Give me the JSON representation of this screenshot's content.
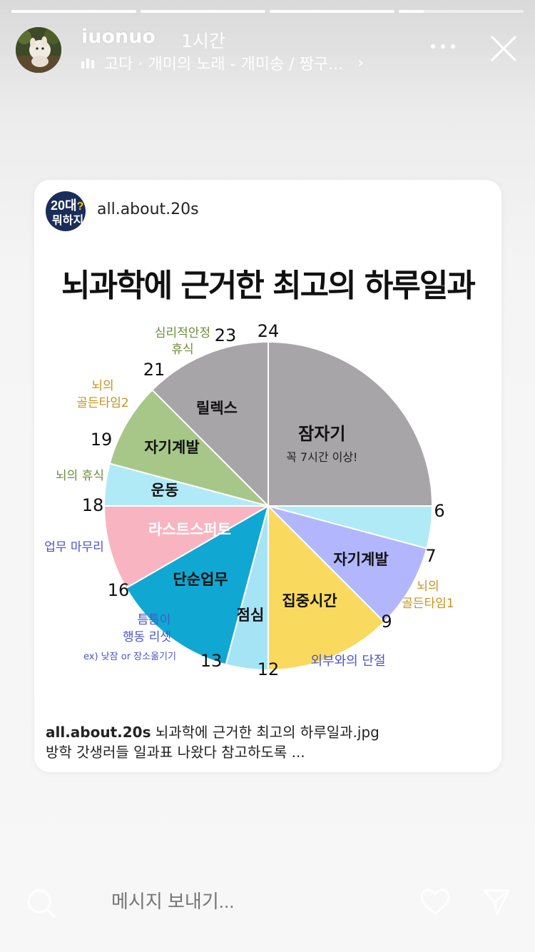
{
  "story": {
    "progress": [
      1,
      1,
      1,
      0.2
    ],
    "username": "iuonuo",
    "time_ago": "1시간",
    "music": "고다 · 개미의 노래 - 개미송 / 짱구...",
    "music_chevron": "›"
  },
  "post": {
    "username": "all.about.20s",
    "avatar_line1": "20대",
    "avatar_q": "?",
    "avatar_line2": "뭐하지",
    "title": "뇌과학에 근거한 최고의 하루일과",
    "caption_user": "all.about.20s",
    "caption_text": " 뇌과학에 근거한 최고의 하루일과.jpg",
    "caption_line2": "방학 갓생러들 일과표 나왔다 참고하도록 ..."
  },
  "chart_data": {
    "type": "pie",
    "title": "뇌과학에 근거한 최고의 하루일과",
    "unit": "hour of day",
    "slices": [
      {
        "label": "잠자기",
        "note": "꼭 7시간 이상!",
        "start": 0,
        "end": 6,
        "color": "#a7a5a7"
      },
      {
        "label": "자기계발",
        "start": 6,
        "end": 7,
        "color": "#b1eaf7"
      },
      {
        "label": "집중시간",
        "start": 7,
        "end": 9,
        "color": "#b2b6fc"
      },
      {
        "label": "점심",
        "start": 9,
        "end": 12,
        "color": "#f9da5f"
      },
      {
        "label": "단순업무",
        "start": 12,
        "end": 13,
        "color": "#a5e4f4"
      },
      {
        "label": "라스트스퍼트",
        "start": 13,
        "end": 16,
        "color": "#10a8d2"
      },
      {
        "label": "운동",
        "start": 16,
        "end": 18,
        "color": "#f8b5c1"
      },
      {
        "label": "자기계발",
        "start": 18,
        "end": 19,
        "color": "#b1eaf7"
      },
      {
        "label": "릴렉스",
        "start": 19,
        "end": 21,
        "color": "#a6c787"
      },
      {
        "label": "",
        "start": 21,
        "end": 24,
        "color": "#a7a5a7"
      }
    ],
    "hour_ticks": [
      "24",
      "23",
      "21",
      "19",
      "18",
      "16",
      "13",
      "12",
      "9",
      "7",
      "6"
    ],
    "annotations": [
      {
        "text": "외부와의 단절",
        "color": "#4a55c8"
      },
      {
        "text": "뇌의",
        "color": "#c7921c"
      },
      {
        "text": "골든타임1",
        "color": "#c7921c"
      },
      {
        "text": "뇌의",
        "color": "#c7921c"
      },
      {
        "text": "골든타임2",
        "color": "#c7921c"
      },
      {
        "text": "심리적안정",
        "color": "#6c8e3a"
      },
      {
        "text": "휴식",
        "color": "#6c8e3a"
      },
      {
        "text": "뇌의 휴식",
        "color": "#6c8e3a"
      },
      {
        "text": "업무 마무리",
        "color": "#4a55c8"
      },
      {
        "text": "틈틈이",
        "color": "#4a55c8"
      },
      {
        "text": "행동 리셋",
        "color": "#4a55c8"
      },
      {
        "text": "ex) 낮잠 or 장소옮기기",
        "color": "#4a55c8"
      }
    ]
  },
  "reply": {
    "placeholder": "메시지 보내기..."
  },
  "icons": {
    "more": "more-icon",
    "close": "close-icon",
    "camera": "camera-icon",
    "heart": "heart-icon",
    "send": "send-icon",
    "music": "music-bars-icon"
  }
}
